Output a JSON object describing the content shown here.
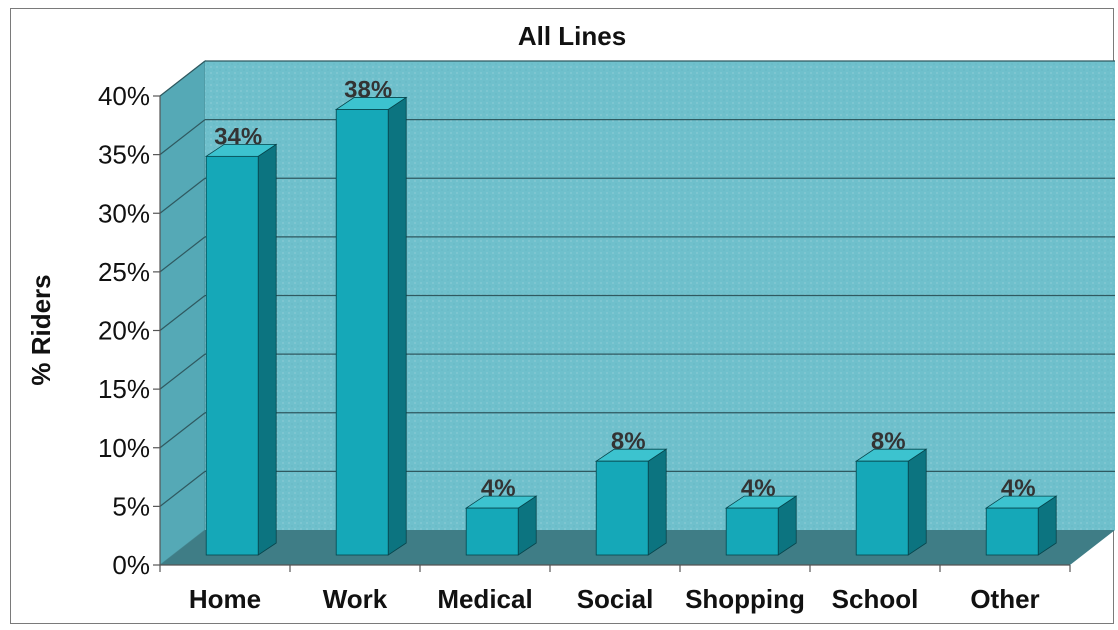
{
  "chart_data": {
    "type": "bar",
    "title": "All Lines",
    "xlabel": "",
    "ylabel": "% Riders",
    "categories": [
      "Home",
      "Work",
      "Medical",
      "Social",
      "Shopping",
      "School",
      "Other"
    ],
    "values": [
      34,
      38,
      4,
      8,
      4,
      8,
      4
    ],
    "value_labels": [
      "34%",
      "38%",
      "4%",
      "8%",
      "4%",
      "8%",
      "4%"
    ],
    "ylim": [
      0,
      40
    ],
    "yticks": [
      0,
      5,
      10,
      15,
      20,
      25,
      30,
      35,
      40
    ],
    "ytick_labels": [
      "0%",
      "5%",
      "10%",
      "15%",
      "20%",
      "25%",
      "30%",
      "35%",
      "40%"
    ],
    "grid": true,
    "style": "3d-column",
    "colors": {
      "bar_front": "#15a8b8",
      "bar_side": "#0c7480",
      "bar_top": "#3cc3cf",
      "wall": "#6fc0cc",
      "side_wall": "#55a9b6",
      "floor": "#3f7d86",
      "gridline": "#2f5960"
    }
  }
}
